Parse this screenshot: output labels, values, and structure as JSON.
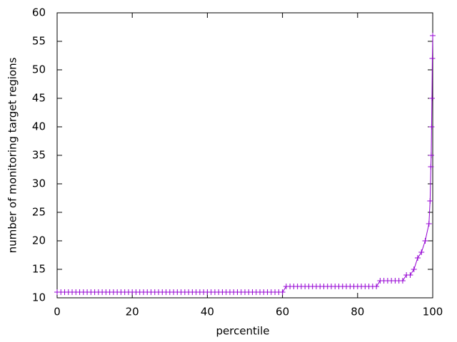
{
  "chart_data": {
    "type": "line",
    "xlabel": "percentile",
    "ylabel": "number of monitoring target regions",
    "x": [
      0,
      1,
      2,
      3,
      4,
      5,
      6,
      7,
      8,
      9,
      10,
      11,
      12,
      13,
      14,
      15,
      16,
      17,
      18,
      19,
      20,
      21,
      22,
      23,
      24,
      25,
      26,
      27,
      28,
      29,
      30,
      31,
      32,
      33,
      34,
      35,
      36,
      37,
      38,
      39,
      40,
      41,
      42,
      43,
      44,
      45,
      46,
      47,
      48,
      49,
      50,
      51,
      52,
      53,
      54,
      55,
      56,
      57,
      58,
      59,
      60,
      61,
      62,
      63,
      64,
      65,
      66,
      67,
      68,
      69,
      70,
      71,
      72,
      73,
      74,
      75,
      76,
      77,
      78,
      79,
      80,
      81,
      82,
      83,
      84,
      85,
      86,
      87,
      88,
      89,
      90,
      91,
      92,
      93,
      94,
      95,
      96,
      97,
      98,
      99,
      99.3,
      99.5,
      99.6,
      99.7,
      99.8,
      99.9,
      100
    ],
    "series": [
      {
        "color": "#9400d3",
        "marker": "+",
        "values": [
          11,
          11,
          11,
          11,
          11,
          11,
          11,
          11,
          11,
          11,
          11,
          11,
          11,
          11,
          11,
          11,
          11,
          11,
          11,
          11,
          11,
          11,
          11,
          11,
          11,
          11,
          11,
          11,
          11,
          11,
          11,
          11,
          11,
          11,
          11,
          11,
          11,
          11,
          11,
          11,
          11,
          11,
          11,
          11,
          11,
          11,
          11,
          11,
          11,
          11,
          11,
          11,
          11,
          11,
          11,
          11,
          11,
          11,
          11,
          11,
          11,
          12,
          12,
          12,
          12,
          12,
          12,
          12,
          12,
          12,
          12,
          12,
          12,
          12,
          12,
          12,
          12,
          12,
          12,
          12,
          12,
          12,
          12,
          12,
          12,
          12,
          13,
          13,
          13,
          13,
          13,
          13,
          13,
          14,
          14,
          15,
          17,
          18,
          20,
          23,
          27,
          33,
          35,
          40,
          45,
          52,
          56
        ]
      }
    ],
    "xlim": [
      0,
      100
    ],
    "xticks": [
      0,
      20,
      40,
      60,
      80,
      100
    ],
    "ylim": [
      10,
      60
    ],
    "yticks": [
      10,
      15,
      20,
      25,
      30,
      35,
      40,
      45,
      50,
      55,
      60
    ],
    "grid": false
  }
}
